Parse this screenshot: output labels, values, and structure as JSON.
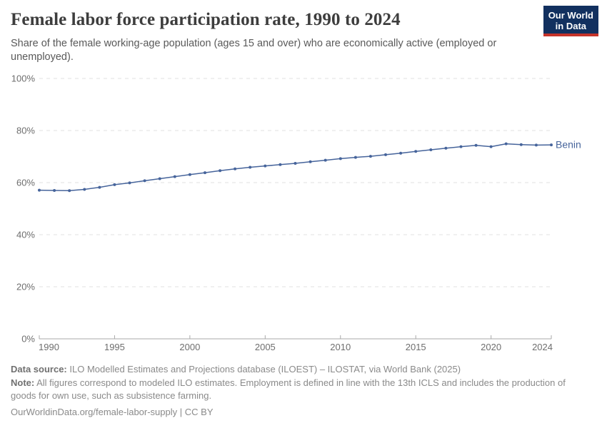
{
  "header": {
    "title": "Female labor force participation rate, 1990 to 2024",
    "subtitle": "Share of the female working-age population (ages 15 and over) who are economically active (employed or unemployed)."
  },
  "logo": {
    "line1": "Our World",
    "line2": "in Data"
  },
  "colors": {
    "series_blue": "#46649B",
    "gridline": "#e0e0e0",
    "axis_line": "#a9a9a9",
    "tick_label": "#6e6e6e",
    "logo_navy": "#12305F",
    "logo_red": "#C5332A"
  },
  "chart_data": {
    "type": "line",
    "title": "Female labor force participation rate, 1990 to 2024",
    "xlabel": "",
    "ylabel": "",
    "ylim": [
      0,
      100
    ],
    "yticks": [
      0,
      20,
      40,
      60,
      80,
      100
    ],
    "ytick_suffix": "%",
    "xticks": [
      1990,
      1995,
      2000,
      2005,
      2010,
      2015,
      2020,
      2024
    ],
    "grid": "horizontal-dashed",
    "legend_position": "end-of-line-label",
    "x": [
      1990,
      1991,
      1992,
      1993,
      1994,
      1995,
      1996,
      1997,
      1998,
      1999,
      2000,
      2001,
      2002,
      2003,
      2004,
      2005,
      2006,
      2007,
      2008,
      2009,
      2010,
      2011,
      2012,
      2013,
      2014,
      2015,
      2016,
      2017,
      2018,
      2019,
      2020,
      2021,
      2022,
      2023,
      2024
    ],
    "series": [
      {
        "name": "Benin",
        "color": "#46649B",
        "values": [
          57.1,
          57.0,
          56.9,
          57.4,
          58.2,
          59.2,
          59.9,
          60.7,
          61.5,
          62.3,
          63.1,
          63.8,
          64.6,
          65.3,
          65.9,
          66.4,
          66.9,
          67.4,
          68.0,
          68.6,
          69.2,
          69.7,
          70.1,
          70.7,
          71.3,
          72.0,
          72.6,
          73.2,
          73.8,
          74.3,
          73.8,
          74.9,
          74.6,
          74.4,
          74.5
        ]
      }
    ]
  },
  "footer": {
    "datasource_label": "Data source:",
    "datasource_text": "ILO Modelled Estimates and Projections database (ILOEST) – ILOSTAT, via World Bank (2025)",
    "note_label": "Note:",
    "note_text": "All figures correspond to modeled ILO estimates. Employment is defined in line with the 13th ICLS and includes the production of goods for own use, such as subsistence farming.",
    "url": "OurWorldinData.org/female-labor-supply",
    "license": "| CC BY"
  }
}
